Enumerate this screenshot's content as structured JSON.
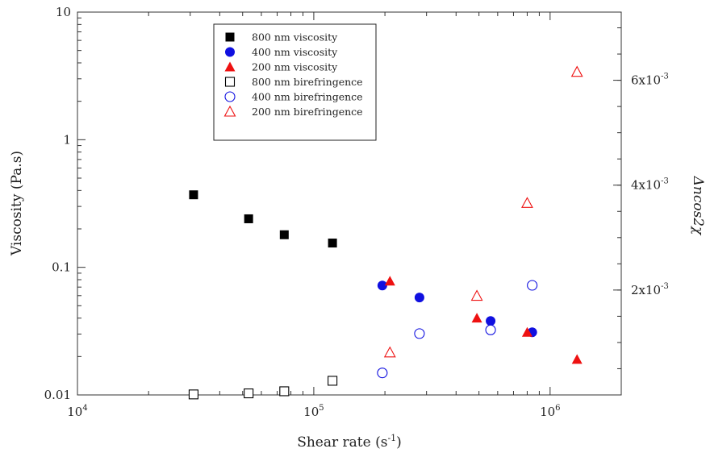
{
  "chart_data": {
    "type": "scatter",
    "xlabel": "Shear rate (s",
    "xlabel_sup": "-1",
    "xlabel_close": ")",
    "ylabel": "Viscosity (Pa.s)",
    "y2label": "Δncos2χ",
    "x_scale": "log",
    "y_scale": "log",
    "xlim": [
      10000,
      2000000
    ],
    "ylim": [
      0.01,
      10
    ],
    "y2lim": [
      0,
      0.0073
    ],
    "grid": false,
    "legend_position": "top-center",
    "x_ticks": [
      {
        "value": 10000,
        "base": "10",
        "exp": "4"
      },
      {
        "value": 100000,
        "base": "10",
        "exp": "5"
      },
      {
        "value": 1000000,
        "base": "10",
        "exp": "6"
      }
    ],
    "y_ticks": [
      {
        "value": 0.01,
        "label": "0.01"
      },
      {
        "value": 0.1,
        "label": "0.1"
      },
      {
        "value": 1,
        "label": "1"
      },
      {
        "value": 10,
        "label": "10"
      }
    ],
    "y2_ticks": [
      {
        "value": 0.002,
        "base": "2x10",
        "exp": "-3"
      },
      {
        "value": 0.004,
        "base": "4x10",
        "exp": "-3"
      },
      {
        "value": 0.006,
        "base": "6x10",
        "exp": "-3"
      }
    ],
    "series": [
      {
        "name": "800 nm viscosity",
        "marker": "square",
        "filled": true,
        "color": "#000000",
        "axis": "left",
        "x": [
          31000,
          53000,
          75000,
          120000
        ],
        "y": [
          0.37,
          0.24,
          0.18,
          0.155
        ]
      },
      {
        "name": "400 nm viscosity",
        "marker": "circle",
        "filled": true,
        "color": "#1010e0",
        "axis": "left",
        "x": [
          195000,
          280000,
          560000,
          840000
        ],
        "y": [
          0.072,
          0.058,
          0.038,
          0.031
        ]
      },
      {
        "name": "200 nm viscosity",
        "marker": "triangle",
        "filled": true,
        "color": "#ee1111",
        "axis": "left",
        "x": [
          210000,
          490000,
          800000,
          1300000
        ],
        "y": [
          0.078,
          0.04,
          0.031,
          0.019
        ]
      },
      {
        "name": "800 nm birefringence",
        "marker": "square",
        "filled": false,
        "color": "#000000",
        "axis": "right",
        "x": [
          31000,
          53000,
          75000,
          120000
        ],
        "y": [
          1e-05,
          3e-05,
          7e-05,
          0.00027
        ]
      },
      {
        "name": "400 nm birefringence",
        "marker": "circle",
        "filled": false,
        "color": "#1010e0",
        "axis": "right",
        "x": [
          195000,
          280000,
          560000,
          840000
        ],
        "y": [
          0.00042,
          0.00117,
          0.00124,
          0.00209
        ]
      },
      {
        "name": "200 nm birefringence",
        "marker": "triangle",
        "filled": false,
        "color": "#ee1111",
        "axis": "right",
        "x": [
          210000,
          490000,
          800000,
          1300000
        ],
        "y": [
          0.00081,
          0.00189,
          0.00366,
          0.00616
        ]
      }
    ]
  }
}
